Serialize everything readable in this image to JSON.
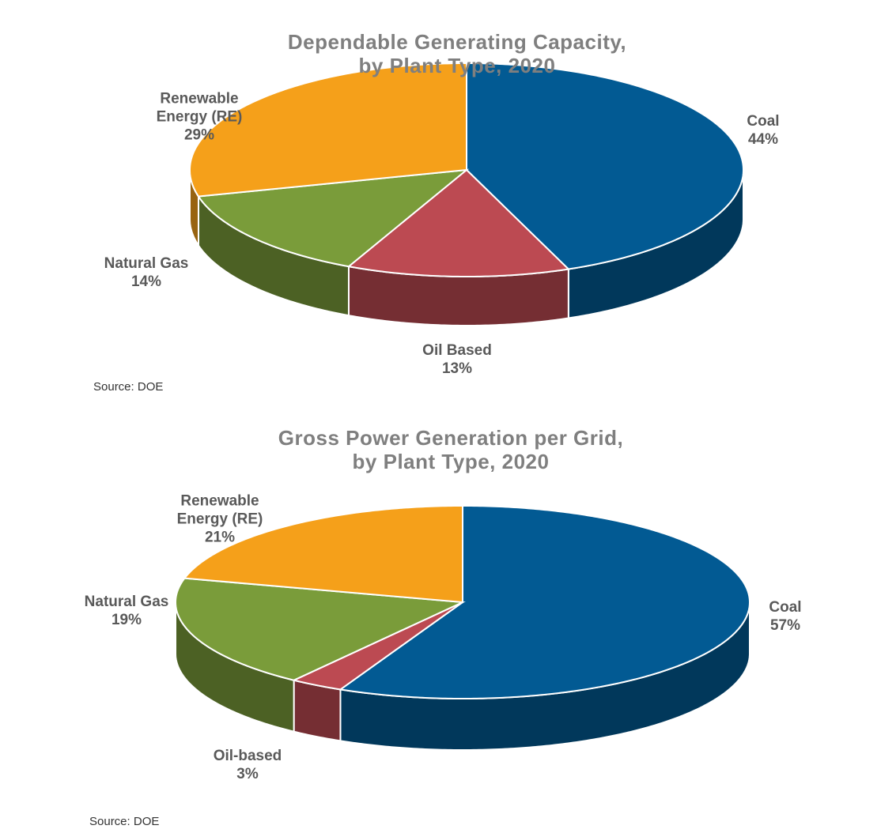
{
  "chart_data": [
    {
      "type": "pie",
      "title": "Dependable Generating Capacity,\nby Plant Type, 2020",
      "categories": [
        "Coal",
        "Oil Based",
        "Natural Gas",
        "Renewable Energy (RE)"
      ],
      "values": [
        44,
        13,
        14,
        29
      ],
      "value_labels": [
        "44%",
        "13%",
        "14%",
        "29%"
      ],
      "colors": [
        "#025a93",
        "#bc4a52",
        "#7a9c3a",
        "#f5a01a"
      ],
      "source": "Source: DOE"
    },
    {
      "type": "pie",
      "title": "Gross Power Generation per Grid,\nby Plant Type, 2020",
      "categories": [
        "Coal",
        "Oil-based",
        "Natural Gas",
        "Renewable Energy (RE)"
      ],
      "values": [
        57,
        3,
        19,
        21
      ],
      "value_labels": [
        "57%",
        "3%",
        "19%",
        "21%"
      ],
      "colors": [
        "#025a93",
        "#bc4a52",
        "#7a9c3a",
        "#f5a01a"
      ],
      "source": "Source: DOE"
    }
  ]
}
